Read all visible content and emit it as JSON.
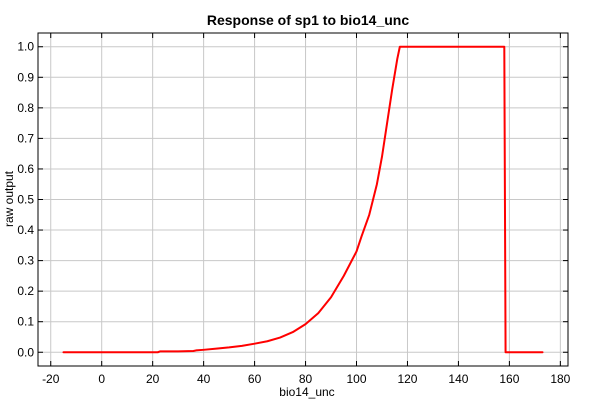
{
  "chart_data": {
    "type": "line",
    "title": "Response of sp1 to bio14_unc",
    "xlabel": "bio14_unc",
    "ylabel": "raw output",
    "xlim": [
      -25,
      183
    ],
    "ylim": [
      -0.045,
      1.045
    ],
    "xticks": [
      -20,
      0,
      20,
      40,
      60,
      80,
      100,
      120,
      140,
      160,
      180
    ],
    "xtick_labels": [
      "-20",
      "0",
      "20",
      "40",
      "60",
      "80",
      "100",
      "120",
      "140",
      "160",
      "180"
    ],
    "yticks": [
      0.0,
      0.1,
      0.2,
      0.3,
      0.4,
      0.5,
      0.6,
      0.7,
      0.8,
      0.9,
      1.0
    ],
    "ytick_labels": [
      "0.0",
      "0.1",
      "0.2",
      "0.3",
      "0.4",
      "0.5",
      "0.6",
      "0.7",
      "0.8",
      "0.9",
      "1.0"
    ],
    "grid": true,
    "series": [
      {
        "color": "#ff0000",
        "x": [
          -15,
          0,
          10,
          22,
          23,
          30,
          36,
          37,
          40,
          45,
          50,
          55,
          60,
          65,
          70,
          75,
          80,
          85,
          90,
          95,
          100,
          102,
          105,
          108,
          110,
          112,
          114,
          116,
          117,
          120,
          130,
          140,
          150,
          158,
          158.5,
          165,
          173
        ],
        "y": [
          0.0,
          0.0,
          0.0,
          0.0,
          0.003,
          0.003,
          0.004,
          0.006,
          0.008,
          0.012,
          0.016,
          0.021,
          0.028,
          0.036,
          0.048,
          0.066,
          0.092,
          0.128,
          0.18,
          0.25,
          0.33,
          0.38,
          0.45,
          0.55,
          0.64,
          0.75,
          0.86,
          0.96,
          1.0,
          1.0,
          1.0,
          1.0,
          1.0,
          1.0,
          0.0,
          0.0,
          0.0
        ]
      }
    ]
  }
}
